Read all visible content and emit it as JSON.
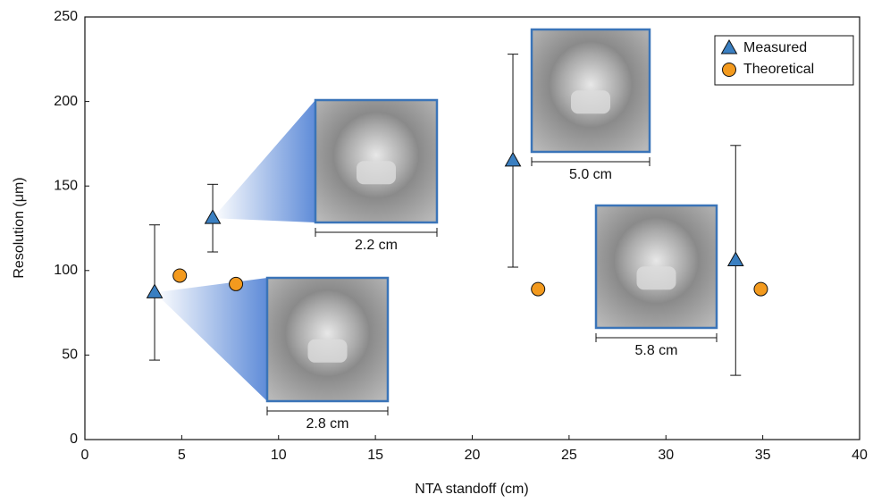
{
  "chart_data": {
    "type": "scatter",
    "xlabel": "NTA standoff (cm)",
    "ylabel": "Resolution (μm)",
    "xlim": [
      0,
      40
    ],
    "xticks": [
      0,
      5,
      10,
      15,
      20,
      25,
      30,
      35,
      40
    ],
    "ylim": [
      0,
      250
    ],
    "yticks": [
      0,
      50,
      100,
      150,
      200,
      250
    ],
    "legend": "top-right",
    "series": [
      {
        "name": "Measured",
        "color": "#3a7fc1",
        "marker": "triangle",
        "x": [
          3.6,
          6.6,
          22.1,
          33.6
        ],
        "values": [
          87,
          131,
          165,
          106
        ],
        "errors": [
          40,
          20,
          63,
          68
        ]
      },
      {
        "name": "Theoretical",
        "color": "#f39a1e",
        "marker": "circle",
        "x": [
          4.9,
          7.8,
          23.4,
          34.9
        ],
        "values": [
          97,
          92,
          89,
          89
        ]
      }
    ],
    "annotations": [
      "2.2 cm",
      "2.8 cm",
      "5.0 cm",
      "5.8 cm"
    ]
  }
}
